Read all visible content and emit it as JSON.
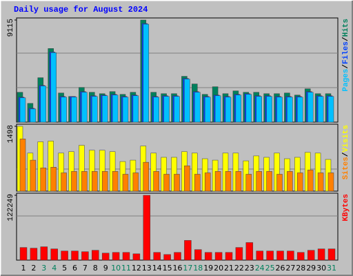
{
  "legend_separator": "/",
  "chart_data": [
    {
      "type": "bar",
      "title": "Daily usage for August 2024",
      "ylim": [
        0,
        9115
      ],
      "yticks": [
        9115
      ],
      "series": [
        {
          "name": "Hits",
          "color": "#00805c",
          "values": [
            2666,
            1674,
            3968,
            6573,
            2604,
            2294,
            3100,
            2666,
            2542,
            2728,
            2480,
            2666,
            9115,
            2666,
            2542,
            2542,
            4092,
            3410,
            2480,
            3162,
            2542,
            2790,
            2666,
            2666,
            2542,
            2542,
            2604,
            2418,
            2976,
            2542,
            2542
          ]
        },
        {
          "name": "Files",
          "color": "#0040ff",
          "values": [
            2230,
            1238,
            3284,
            6260,
            2292,
            2292,
            2726,
            2354,
            2416,
            2478,
            2292,
            2416,
            8803,
            2292,
            2354,
            2354,
            3904,
            2726,
            2292,
            2416,
            2292,
            2478,
            2540,
            2354,
            2354,
            2292,
            2292,
            2292,
            2726,
            2354,
            2354
          ]
        },
        {
          "name": "Pages",
          "color": "#00c0ff",
          "values": [
            2170,
            1178,
            3224,
            6200,
            2232,
            2232,
            2666,
            2294,
            2356,
            2418,
            2232,
            2356,
            8743,
            2232,
            2294,
            2294,
            3844,
            2666,
            2232,
            2356,
            2232,
            2418,
            2480,
            2294,
            2294,
            2232,
            2232,
            2232,
            2666,
            2294,
            2294
          ]
        }
      ]
    },
    {
      "type": "bar",
      "ylim": [
        0,
        1498
      ],
      "yticks": [
        1498
      ],
      "series": [
        {
          "name": "Visits",
          "color": "#ffff00",
          "values": [
            1498,
            879,
            1140,
            1156,
            879,
            912,
            1058,
            944,
            944,
            912,
            684,
            716,
            1042,
            879,
            781,
            781,
            912,
            879,
            749,
            716,
            879,
            879,
            700,
            814,
            781,
            879,
            749,
            781,
            895,
            879,
            733
          ]
        },
        {
          "name": "Sites",
          "color": "#ff8000",
          "values": [
            1205,
            716,
            537,
            553,
            423,
            456,
            456,
            456,
            456,
            456,
            391,
            423,
            667,
            456,
            391,
            391,
            586,
            391,
            423,
            456,
            456,
            456,
            391,
            456,
            456,
            391,
            456,
            423,
            488,
            423,
            423
          ]
        }
      ]
    },
    {
      "type": "bar",
      "ylim": [
        0,
        122249
      ],
      "yticks": [
        122249
      ],
      "categories": [
        "1",
        "2",
        "3",
        "4",
        "5",
        "6",
        "7",
        "8",
        "9",
        "10",
        "11",
        "12",
        "13",
        "14",
        "15",
        "16",
        "17",
        "18",
        "19",
        "20",
        "21",
        "22",
        "23",
        "24",
        "25",
        "26",
        "27",
        "28",
        "29",
        "30",
        "31"
      ],
      "label_colors": [
        "#000000",
        "#000000",
        "#00805c",
        "#00805c",
        "#000000",
        "#000000",
        "#000000",
        "#000000",
        "#000000",
        "#00805c",
        "#00805c",
        "#000000",
        "#000000",
        "#000000",
        "#000000",
        "#000000",
        "#00805c",
        "#00805c",
        "#000000",
        "#000000",
        "#000000",
        "#000000",
        "#000000",
        "#00805c",
        "#00805c",
        "#000000",
        "#000000",
        "#000000",
        "#000000",
        "#000000",
        "#00805c"
      ],
      "series": [
        {
          "name": "KBytes",
          "color": "#ff0000",
          "values": [
            23900,
            22600,
            25250,
            21260,
            17280,
            17280,
            15950,
            18600,
            13290,
            14620,
            14620,
            11960,
            122249,
            14620,
            10630,
            14620,
            37210,
            19930,
            14620,
            14620,
            14620,
            23920,
            33220,
            17280,
            17280,
            17280,
            17280,
            14620,
            18600,
            21260,
            21260
          ]
        }
      ]
    }
  ]
}
